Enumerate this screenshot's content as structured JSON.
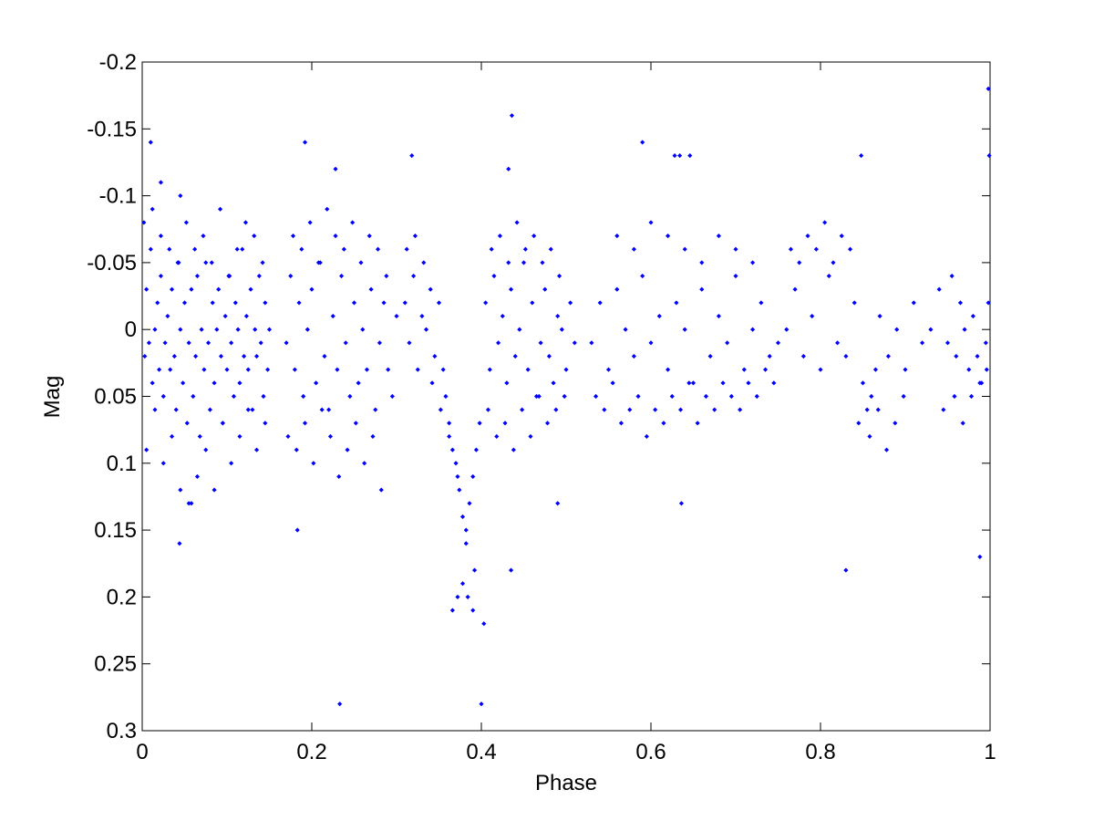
{
  "chart_data": {
    "type": "scatter",
    "title": "",
    "xlabel": "Phase",
    "ylabel": "Mag",
    "xlim": [
      0,
      1
    ],
    "ylim": [
      -0.2,
      0.3
    ],
    "y_reversed": true,
    "grid": false,
    "x_ticks": [
      0,
      0.2,
      0.4,
      0.6,
      0.8,
      1
    ],
    "x_tick_labels": [
      "0",
      "0.2",
      "0.4",
      "0.6",
      "0.8",
      "1"
    ],
    "y_ticks": [
      -0.2,
      -0.15,
      -0.1,
      -0.05,
      0,
      0.05,
      0.1,
      0.15,
      0.2,
      0.25,
      0.3
    ],
    "y_tick_labels": [
      "-0.2",
      "-0.15",
      "-0.1",
      "-0.05",
      "0",
      "0.05",
      "0.1",
      "0.15",
      "0.2",
      "0.25",
      "0.3"
    ],
    "marker_color": "#0000ff",
    "series": [
      {
        "x": [
          0.003,
          0.005,
          0.008,
          0.01,
          0.012,
          0.015,
          0.018,
          0.02,
          0.022,
          0.025,
          0.027,
          0.03,
          0.033,
          0.035,
          0.038,
          0.04,
          0.043,
          0.045,
          0.048,
          0.05,
          0.053,
          0.055,
          0.058,
          0.06,
          0.063,
          0.065,
          0.068,
          0.07,
          0.073,
          0.075,
          0.078,
          0.08,
          0.083,
          0.085,
          0.088,
          0.09,
          0.093,
          0.095,
          0.098,
          0.1,
          0.103,
          0.105,
          0.108,
          0.11,
          0.113,
          0.115,
          0.118,
          0.12,
          0.123,
          0.125,
          0.128,
          0.13,
          0.133,
          0.135,
          0.138,
          0.14,
          0.143,
          0.145,
          0.148,
          0.15,
          0.005,
          0.015,
          0.025,
          0.035,
          0.045,
          0.055,
          0.065,
          0.075,
          0.085,
          0.095,
          0.105,
          0.115,
          0.125,
          0.135,
          0.145,
          0.002,
          0.012,
          0.022,
          0.032,
          0.042,
          0.052,
          0.062,
          0.072,
          0.082,
          0.092,
          0.102,
          0.112,
          0.122,
          0.132,
          0.142,
          0.17,
          0.175,
          0.18,
          0.185,
          0.19,
          0.195,
          0.2,
          0.205,
          0.21,
          0.215,
          0.22,
          0.225,
          0.23,
          0.235,
          0.24,
          0.245,
          0.25,
          0.255,
          0.26,
          0.265,
          0.27,
          0.275,
          0.28,
          0.285,
          0.29,
          0.295,
          0.3,
          0.172,
          0.182,
          0.192,
          0.202,
          0.212,
          0.222,
          0.232,
          0.242,
          0.252,
          0.262,
          0.272,
          0.282,
          0.178,
          0.188,
          0.198,
          0.208,
          0.218,
          0.228,
          0.238,
          0.248,
          0.258,
          0.268,
          0.278,
          0.288,
          0.31,
          0.315,
          0.32,
          0.325,
          0.33,
          0.335,
          0.34,
          0.345,
          0.35,
          0.355,
          0.358,
          0.362,
          0.366,
          0.37,
          0.374,
          0.378,
          0.382,
          0.386,
          0.39,
          0.394,
          0.398,
          0.312,
          0.322,
          0.332,
          0.342,
          0.352,
          0.362,
          0.372,
          0.382,
          0.392,
          0.405,
          0.41,
          0.415,
          0.42,
          0.425,
          0.43,
          0.435,
          0.44,
          0.445,
          0.45,
          0.455,
          0.46,
          0.465,
          0.47,
          0.475,
          0.48,
          0.485,
          0.49,
          0.495,
          0.5,
          0.505,
          0.51,
          0.408,
          0.418,
          0.428,
          0.438,
          0.448,
          0.458,
          0.468,
          0.478,
          0.488,
          0.498,
          0.412,
          0.422,
          0.432,
          0.442,
          0.452,
          0.462,
          0.472,
          0.482,
          0.492,
          0.53,
          0.54,
          0.55,
          0.56,
          0.57,
          0.58,
          0.59,
          0.6,
          0.61,
          0.62,
          0.63,
          0.64,
          0.65,
          0.66,
          0.67,
          0.68,
          0.69,
          0.7,
          0.71,
          0.72,
          0.73,
          0.74,
          0.75,
          0.535,
          0.545,
          0.555,
          0.565,
          0.575,
          0.585,
          0.595,
          0.605,
          0.615,
          0.625,
          0.635,
          0.645,
          0.655,
          0.665,
          0.675,
          0.685,
          0.695,
          0.705,
          0.715,
          0.725,
          0.735,
          0.745,
          0.56,
          0.58,
          0.6,
          0.62,
          0.64,
          0.66,
          0.68,
          0.7,
          0.72,
          0.76,
          0.77,
          0.78,
          0.79,
          0.8,
          0.81,
          0.82,
          0.83,
          0.84,
          0.85,
          0.855,
          0.86,
          0.865,
          0.87,
          0.88,
          0.89,
          0.9,
          0.91,
          0.92,
          0.93,
          0.765,
          0.775,
          0.785,
          0.795,
          0.805,
          0.815,
          0.825,
          0.835,
          0.845,
          0.858,
          0.868,
          0.878,
          0.888,
          0.898,
          0.94,
          0.95,
          0.955,
          0.96,
          0.965,
          0.97,
          0.975,
          0.98,
          0.985,
          0.99,
          0.995,
          0.998,
          0.945,
          0.958,
          0.968,
          0.978,
          0.988,
          0.996,
          0.01,
          0.022,
          0.045,
          0.192,
          0.228,
          0.318,
          0.432,
          0.436,
          0.59,
          0.628,
          0.634,
          0.646,
          0.848,
          0.998,
          0.999,
          0.044,
          0.058,
          0.183,
          0.233,
          0.366,
          0.372,
          0.378,
          0.384,
          0.39,
          0.4,
          0.403,
          0.435,
          0.49,
          0.636,
          0.83,
          0.988
        ],
        "y": [
          0.02,
          -0.03,
          0.01,
          -0.06,
          0.04,
          0.0,
          -0.02,
          0.03,
          -0.04,
          0.05,
          0.01,
          -0.01,
          0.03,
          -0.03,
          0.02,
          0.06,
          -0.05,
          0.0,
          0.04,
          -0.02,
          0.07,
          0.01,
          -0.03,
          0.05,
          0.02,
          -0.04,
          0.08,
          0.0,
          0.03,
          -0.05,
          0.01,
          0.06,
          -0.02,
          0.04,
          0.0,
          -0.03,
          0.02,
          0.07,
          -0.01,
          0.03,
          -0.04,
          0.01,
          0.05,
          -0.02,
          0.0,
          0.04,
          -0.06,
          0.02,
          -0.01,
          0.03,
          -0.03,
          0.06,
          0.0,
          0.02,
          -0.04,
          0.01,
          0.05,
          -0.02,
          0.03,
          0.0,
          0.09,
          0.06,
          0.1,
          0.08,
          0.12,
          0.13,
          0.11,
          0.09,
          0.12,
          0.07,
          0.1,
          0.08,
          0.06,
          0.09,
          0.07,
          -0.08,
          -0.09,
          -0.07,
          -0.06,
          -0.05,
          -0.08,
          -0.06,
          -0.07,
          -0.05,
          -0.09,
          -0.04,
          -0.06,
          -0.08,
          -0.07,
          -0.05,
          0.01,
          -0.04,
          0.03,
          -0.02,
          0.05,
          0.0,
          -0.03,
          0.04,
          -0.05,
          0.02,
          0.06,
          -0.01,
          0.03,
          -0.04,
          0.01,
          0.05,
          -0.02,
          0.04,
          0.0,
          0.03,
          -0.03,
          0.06,
          0.01,
          -0.02,
          0.03,
          0.05,
          -0.01,
          0.08,
          0.09,
          0.07,
          0.1,
          0.06,
          0.08,
          0.11,
          0.09,
          0.07,
          0.1,
          0.08,
          0.12,
          -0.07,
          -0.06,
          -0.08,
          -0.05,
          -0.09,
          -0.07,
          -0.06,
          -0.08,
          -0.05,
          -0.07,
          -0.06,
          -0.04,
          -0.02,
          0.01,
          -0.04,
          0.03,
          -0.01,
          0.0,
          -0.03,
          0.02,
          -0.02,
          0.03,
          0.05,
          0.07,
          0.09,
          0.1,
          0.12,
          0.14,
          0.16,
          0.13,
          0.11,
          0.09,
          0.07,
          -0.06,
          -0.07,
          -0.05,
          0.04,
          0.06,
          0.08,
          0.11,
          0.15,
          0.18,
          -0.02,
          0.03,
          -0.04,
          0.01,
          -0.01,
          0.04,
          -0.03,
          0.02,
          0.0,
          -0.05,
          0.03,
          -0.02,
          0.05,
          0.01,
          -0.03,
          0.02,
          0.04,
          -0.01,
          0.0,
          0.03,
          -0.02,
          0.01,
          0.06,
          0.08,
          0.07,
          0.09,
          0.06,
          0.08,
          0.05,
          0.07,
          0.06,
          0.05,
          -0.06,
          -0.07,
          -0.05,
          -0.08,
          -0.06,
          -0.07,
          -0.05,
          -0.06,
          -0.04,
          0.01,
          -0.02,
          0.03,
          -0.03,
          0.0,
          0.02,
          -0.04,
          0.01,
          -0.01,
          0.03,
          -0.02,
          0.0,
          0.04,
          -0.03,
          0.02,
          -0.01,
          0.01,
          -0.04,
          0.03,
          0.0,
          -0.02,
          0.02,
          0.01,
          0.05,
          0.06,
          0.04,
          0.07,
          0.06,
          0.05,
          0.08,
          0.06,
          0.07,
          0.05,
          0.06,
          0.04,
          0.07,
          0.05,
          0.06,
          0.04,
          0.05,
          0.06,
          0.04,
          0.05,
          0.03,
          0.04,
          -0.07,
          -0.06,
          -0.08,
          -0.07,
          -0.06,
          -0.05,
          -0.07,
          -0.06,
          -0.05,
          0.0,
          -0.03,
          0.02,
          -0.01,
          0.03,
          -0.04,
          0.01,
          0.02,
          -0.02,
          0.04,
          0.06,
          0.05,
          0.03,
          -0.01,
          0.02,
          0.0,
          0.03,
          -0.02,
          0.01,
          0.0,
          -0.06,
          -0.05,
          -0.07,
          -0.06,
          -0.08,
          -0.05,
          -0.07,
          -0.06,
          0.07,
          0.08,
          0.06,
          0.09,
          0.07,
          0.05,
          -0.03,
          0.01,
          -0.04,
          0.02,
          -0.02,
          0.0,
          0.03,
          -0.01,
          0.02,
          0.04,
          0.01,
          -0.02,
          0.06,
          0.05,
          0.07,
          0.05,
          0.04,
          0.03,
          -0.14,
          -0.11,
          -0.1,
          -0.14,
          -0.12,
          -0.13,
          -0.12,
          -0.16,
          -0.14,
          -0.13,
          -0.13,
          -0.13,
          -0.13,
          -0.18,
          -0.13,
          0.16,
          0.13,
          0.15,
          0.28,
          0.21,
          0.2,
          0.19,
          0.2,
          0.21,
          0.28,
          0.22,
          0.18,
          0.13,
          0.13,
          0.18,
          0.17
        ]
      }
    ]
  }
}
